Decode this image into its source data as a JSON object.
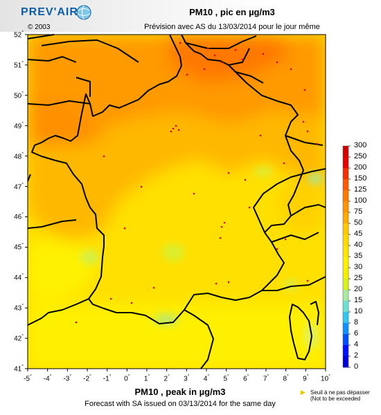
{
  "header": {
    "logo_text": "PREV'AIR",
    "copyright": "© 2003",
    "title": "PM10 , pic en µg/m3",
    "subtitle": "Prévision avec AS du 13/03/2014 pour le jour même"
  },
  "footer": {
    "title": "PM10 , peak in µg/m3",
    "subtitle": "Forecast with SA issued on 03/13/2014 for the same day"
  },
  "map": {
    "lat_labels": [
      "52",
      "51",
      "50",
      "49",
      "48",
      "47",
      "46",
      "45",
      "44",
      "43",
      "42",
      "41"
    ],
    "lon_labels": [
      "-5",
      "-4",
      "-3",
      "-2",
      "-1",
      "0",
      "1",
      "2",
      "3",
      "4",
      "5",
      "6",
      "7",
      "8",
      "9",
      "10"
    ],
    "degree_symbol": "°",
    "extent": {
      "lon_min": -5,
      "lon_max": 10,
      "lat_min": 41,
      "lat_max": 52
    }
  },
  "colorbar": {
    "ticks": [
      "300",
      "250",
      "200",
      "150",
      "125",
      "100",
      "75",
      "50",
      "45",
      "40",
      "35",
      "30",
      "25",
      "20",
      "15",
      "10",
      "8",
      "6",
      "4",
      "2",
      "0"
    ],
    "colors": [
      "#d40000",
      "#e60000",
      "#f53000",
      "#ff5a00",
      "#ff7a00",
      "#ff9400",
      "#ffaa00",
      "#ffc800",
      "#ffd800",
      "#ffe400",
      "#fff000",
      "#f4f000",
      "#d8f020",
      "#a8e8a0",
      "#6ee0d0",
      "#30c8f0",
      "#1090ff",
      "#0050ff",
      "#0010ff",
      "#0000d8"
    ]
  },
  "legend_note": {
    "line1": "Seuil à ne pas dépasser",
    "line2": "(Not to be exceeded"
  },
  "exceedance_color": "#e0002a"
}
